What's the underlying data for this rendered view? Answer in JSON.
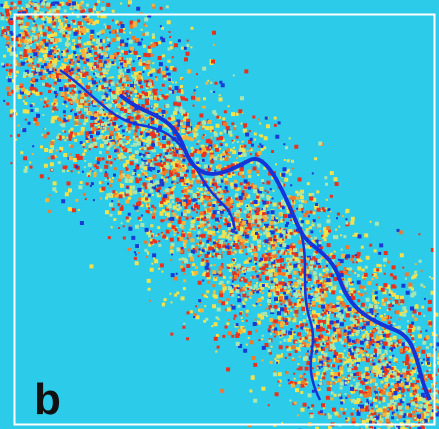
{
  "label": "b"
}
